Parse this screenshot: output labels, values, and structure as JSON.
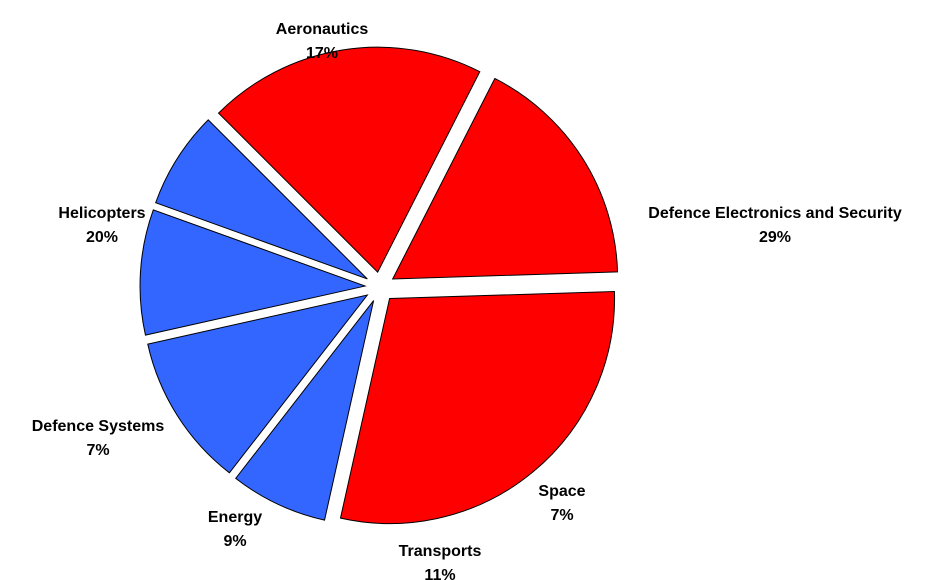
{
  "chart_data": {
    "type": "pie",
    "title": "",
    "slices": [
      {
        "name": "Aeronautics",
        "pct_label": "17%",
        "value": 17,
        "color": "#ff0000"
      },
      {
        "name": "Defence Electronics and Security",
        "pct_label": "29%",
        "value": 29,
        "color": "#ff0000"
      },
      {
        "name": "Space",
        "pct_label": "7%",
        "value": 7,
        "color": "#3366ff"
      },
      {
        "name": "Transports",
        "pct_label": "11%",
        "value": 11,
        "color": "#3366ff"
      },
      {
        "name": "Energy",
        "pct_label": "9%",
        "value": 9,
        "color": "#3366ff"
      },
      {
        "name": "Defence Systems",
        "pct_label": "7%",
        "value": 7,
        "color": "#3366ff"
      },
      {
        "name": "Helicopters",
        "pct_label": "20%",
        "value": 20,
        "color": "#ff0000"
      }
    ],
    "exploded": true,
    "legend": "none"
  }
}
